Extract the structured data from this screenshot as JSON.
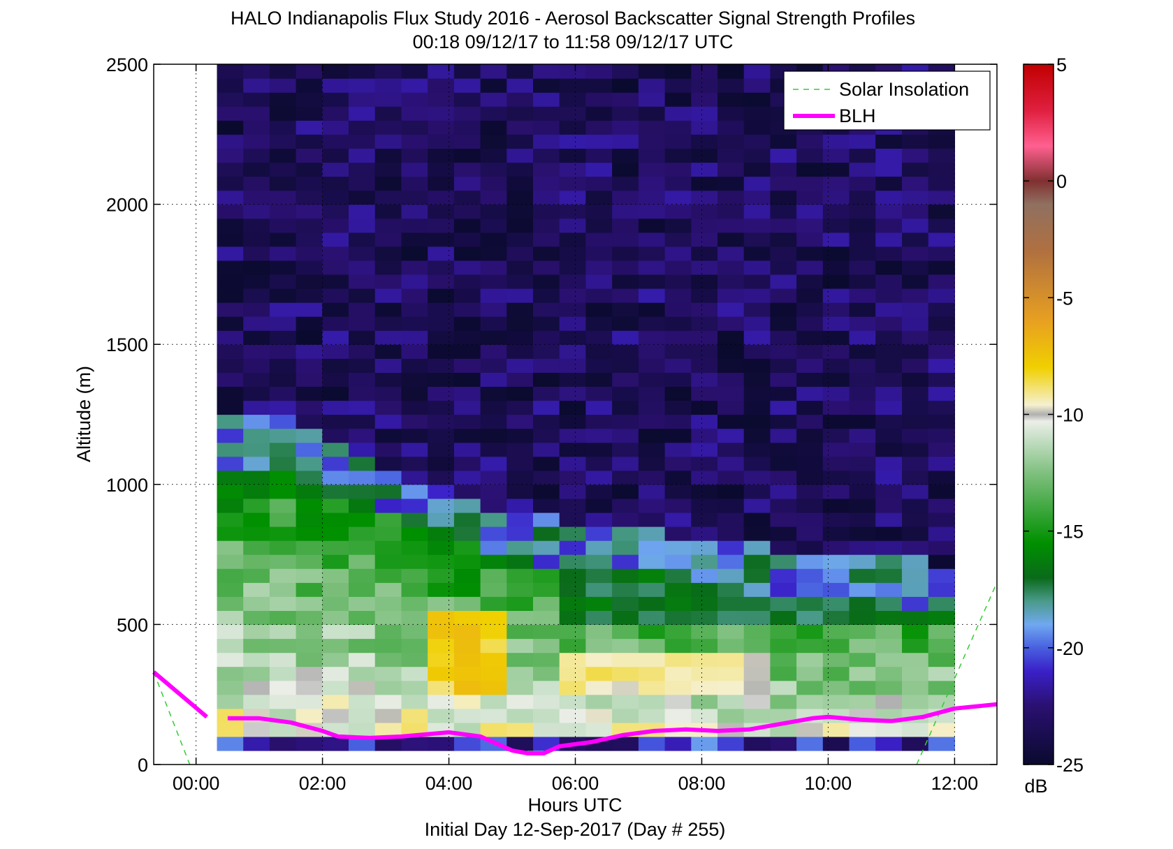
{
  "chart_data": {
    "type": "heatmap",
    "title": "HALO Indianapolis Flux Study 2016 - Aerosol Backscatter Signal Strength Profiles",
    "subtitle": "00:18 09/12/17 to 11:58 09/12/17  UTC",
    "xlabel": "Hours UTC",
    "xlabel2": "Initial Day 12-Sep-2017 (Day # 255)",
    "ylabel": "Altitude (m)",
    "xlim": [
      -0.67,
      12.67
    ],
    "ylim": [
      0,
      2500
    ],
    "x_ticks": [
      0,
      2,
      4,
      6,
      8,
      10,
      12
    ],
    "x_tick_labels": [
      "00:00",
      "02:00",
      "04:00",
      "06:00",
      "08:00",
      "10:00",
      "12:00"
    ],
    "y_ticks": [
      0,
      500,
      1000,
      1500,
      2000,
      2500
    ],
    "y_tick_labels": [
      "0",
      "500",
      "1000",
      "1500",
      "2000",
      "2500"
    ],
    "grid": true,
    "legend_position": "top-right",
    "colorbar": {
      "label": "dB",
      "range": [
        -25,
        5
      ],
      "ticks": [
        5,
        0,
        -5,
        -10,
        -15,
        -20,
        -25
      ],
      "tick_labels": [
        "5",
        "0",
        "-5",
        "-10",
        "-15",
        "-20",
        "-25"
      ],
      "stops": [
        [
          -25,
          "#0a0a2e"
        ],
        [
          -22.5,
          "#2a1070"
        ],
        [
          -21,
          "#3a20c8"
        ],
        [
          -20,
          "#4860e0"
        ],
        [
          -19,
          "#70a8f0"
        ],
        [
          -18,
          "#4a9a8a"
        ],
        [
          -17,
          "#0a6a1a"
        ],
        [
          -15.5,
          "#009000"
        ],
        [
          -14,
          "#40a840"
        ],
        [
          -12.5,
          "#80c080"
        ],
        [
          -11,
          "#c8e0c8"
        ],
        [
          -10.3,
          "#eceee8"
        ],
        [
          -10,
          "#b0b0b0"
        ],
        [
          -9.6,
          "#f5f0d0"
        ],
        [
          -8,
          "#f0d000"
        ],
        [
          -6,
          "#e8a020"
        ],
        [
          -3,
          "#b07040"
        ],
        [
          -1,
          "#907060"
        ],
        [
          0,
          "#803030"
        ],
        [
          1.5,
          "#ff6090"
        ],
        [
          3,
          "#e02040"
        ],
        [
          5,
          "#c00000"
        ]
      ]
    },
    "heatmap": {
      "x_start": 0.33,
      "x_end": 12.0,
      "columns": 28,
      "y_bin_height": 50,
      "notes": "values in dB, estimated from color; BLH-driven vertical structure"
    },
    "series": [
      {
        "name": "Solar Insolation",
        "style": "dashed",
        "color": "#33cc33",
        "segments": [
          [
            [
              -0.67,
              330
            ],
            [
              -0.1,
              0
            ]
          ],
          [
            [
              11.4,
              0
            ],
            [
              12.67,
              650
            ]
          ]
        ]
      },
      {
        "name": "BLH",
        "style": "solid",
        "color": "#ff00ff",
        "segments": [
          [
            [
              -0.67,
              330
            ],
            [
              0.17,
              170
            ]
          ],
          [
            [
              0.5,
              165
            ],
            [
              1.0,
              165
            ],
            [
              1.5,
              150
            ],
            [
              2.0,
              120
            ],
            [
              2.25,
              100
            ],
            [
              2.75,
              95
            ],
            [
              3.25,
              100
            ],
            [
              3.75,
              110
            ],
            [
              4.0,
              115
            ],
            [
              4.5,
              100
            ],
            [
              4.75,
              75
            ],
            [
              5.0,
              50
            ],
            [
              5.25,
              40
            ],
            [
              5.5,
              40
            ],
            [
              5.75,
              65
            ],
            [
              6.25,
              80
            ],
            [
              6.75,
              105
            ],
            [
              7.25,
              120
            ],
            [
              7.75,
              125
            ],
            [
              8.25,
              120
            ],
            [
              8.75,
              125
            ],
            [
              9.25,
              145
            ],
            [
              9.75,
              165
            ],
            [
              10.0,
              170
            ],
            [
              10.5,
              160
            ],
            [
              11.0,
              155
            ],
            [
              11.5,
              170
            ],
            [
              12.0,
              200
            ],
            [
              12.67,
              215
            ]
          ]
        ]
      }
    ]
  }
}
